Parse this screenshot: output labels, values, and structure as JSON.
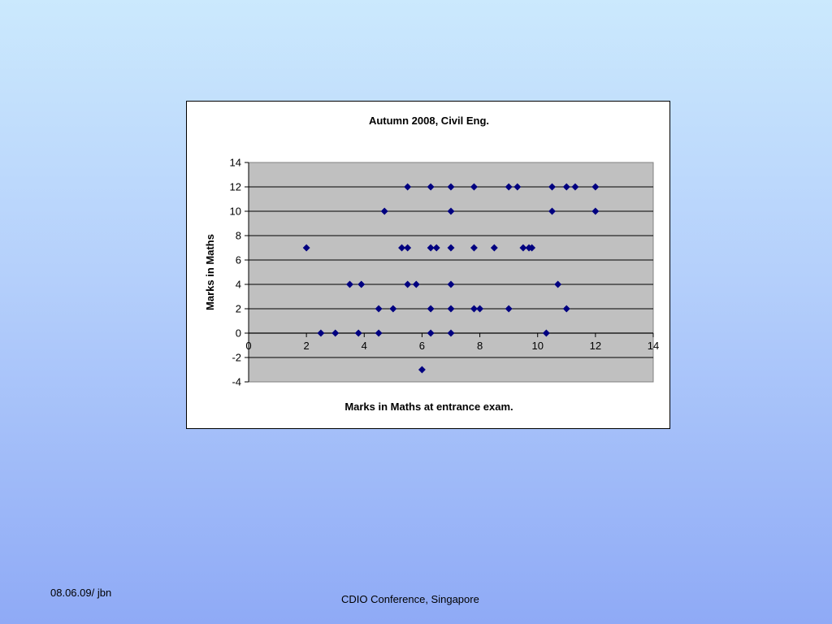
{
  "slide": {
    "footer_left": "08.06.09/ jbn",
    "footer_center": "CDIO Conference, Singapore"
  },
  "chart_data": {
    "type": "scatter",
    "title": "Autumn 2008, Civil Eng.",
    "xlabel": "Marks in Maths at entrance exam.",
    "ylabel": "Marks in Maths",
    "xlim": [
      0,
      14
    ],
    "ylim": [
      -4,
      14
    ],
    "x_ticks": [
      0,
      2,
      4,
      6,
      8,
      10,
      12,
      14
    ],
    "y_ticks": [
      -4,
      -2,
      0,
      2,
      4,
      6,
      8,
      10,
      12,
      14
    ],
    "grid": "horizontal major gridlines",
    "legend": "none",
    "plot_background": "#c0c0c0",
    "marker_color": "#000080",
    "points": [
      [
        2,
        7
      ],
      [
        2.5,
        0
      ],
      [
        3,
        0
      ],
      [
        3.8,
        0
      ],
      [
        4.5,
        0
      ],
      [
        6.3,
        0
      ],
      [
        7,
        0
      ],
      [
        10.3,
        0
      ],
      [
        3.5,
        4
      ],
      [
        3.9,
        4
      ],
      [
        5.5,
        4
      ],
      [
        5.8,
        4
      ],
      [
        7,
        4
      ],
      [
        10.7,
        4
      ],
      [
        4.5,
        2
      ],
      [
        5,
        2
      ],
      [
        6.3,
        2
      ],
      [
        7,
        2
      ],
      [
        7.8,
        2
      ],
      [
        8,
        2
      ],
      [
        9,
        2
      ],
      [
        11,
        2
      ],
      [
        4.7,
        10
      ],
      [
        7,
        10
      ],
      [
        10.5,
        10
      ],
      [
        12,
        10
      ],
      [
        5.3,
        7
      ],
      [
        5.5,
        7
      ],
      [
        6.3,
        7
      ],
      [
        6.5,
        7
      ],
      [
        7,
        7
      ],
      [
        7.8,
        7
      ],
      [
        8.5,
        7
      ],
      [
        9.5,
        7
      ],
      [
        9.7,
        7
      ],
      [
        9.8,
        7
      ],
      [
        5.5,
        12
      ],
      [
        6.3,
        12
      ],
      [
        7,
        12
      ],
      [
        7.8,
        12
      ],
      [
        9,
        12
      ],
      [
        9.3,
        12
      ],
      [
        10.5,
        12
      ],
      [
        11,
        12
      ],
      [
        11.3,
        12
      ],
      [
        12,
        12
      ],
      [
        6,
        -3
      ]
    ]
  }
}
